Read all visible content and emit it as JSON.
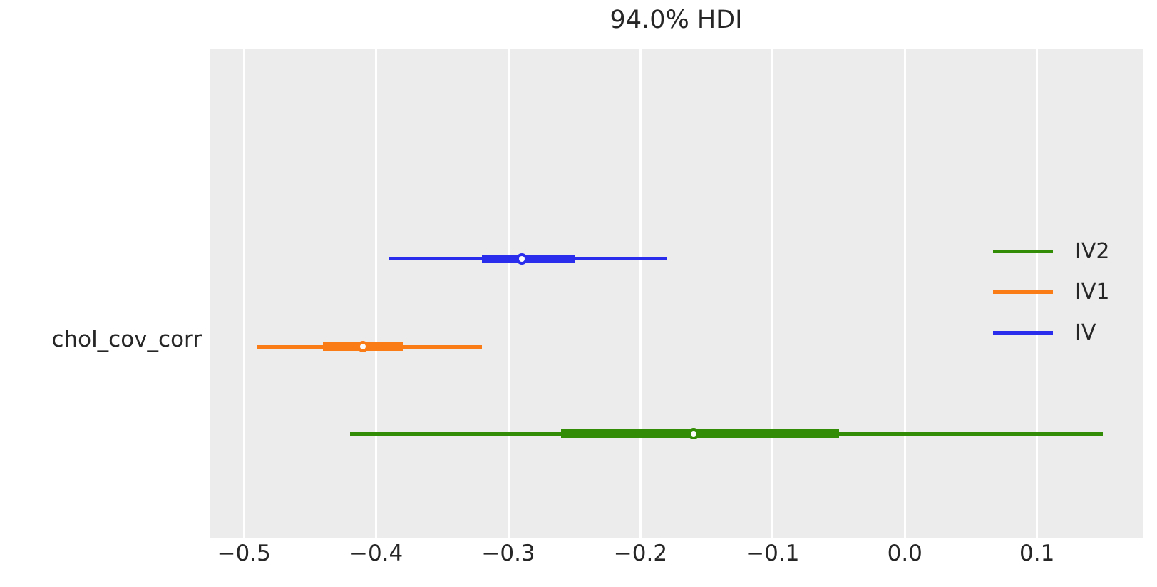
{
  "figure": {
    "background": "#ffffff",
    "plot_background": "#ececec",
    "grid_color": "#ffffff",
    "text_color": "#262626"
  },
  "chart_data": {
    "type": "forest_interval",
    "title": "94.0% HDI",
    "y_axis_label": "chol_cov_corr",
    "xlim": [
      -0.526,
      0.18
    ],
    "x_ticks": [
      -0.5,
      -0.4,
      -0.3,
      -0.2,
      -0.1,
      0.0,
      0.1
    ],
    "x_tick_labels": [
      "−0.5",
      "−0.4",
      "−0.3",
      "−0.2",
      "−0.1",
      "0.0",
      "0.1"
    ],
    "grid": "vertical white gridlines on gray panel",
    "legend_position": "right, no frame",
    "series": [
      {
        "name": "IV",
        "color": "#2a2eec",
        "hdi_lower": -0.39,
        "hdi_upper": -0.18,
        "thick_lower": -0.32,
        "thick_upper": -0.25,
        "point": -0.29,
        "row_frac": 0.429
      },
      {
        "name": "IV1",
        "color": "#fa7c17",
        "hdi_lower": -0.49,
        "hdi_upper": -0.32,
        "thick_lower": -0.44,
        "thick_upper": -0.38,
        "point": -0.41,
        "row_frac": 0.609
      },
      {
        "name": "IV2",
        "color": "#328c06",
        "hdi_lower": -0.42,
        "hdi_upper": 0.15,
        "thick_lower": -0.26,
        "thick_upper": -0.05,
        "point": -0.16,
        "row_frac": 0.787
      }
    ],
    "legend": [
      {
        "label": "IV2",
        "color": "#328c06"
      },
      {
        "label": "IV1",
        "color": "#fa7c17"
      },
      {
        "label": "IV",
        "color": "#2a2eec"
      }
    ]
  }
}
